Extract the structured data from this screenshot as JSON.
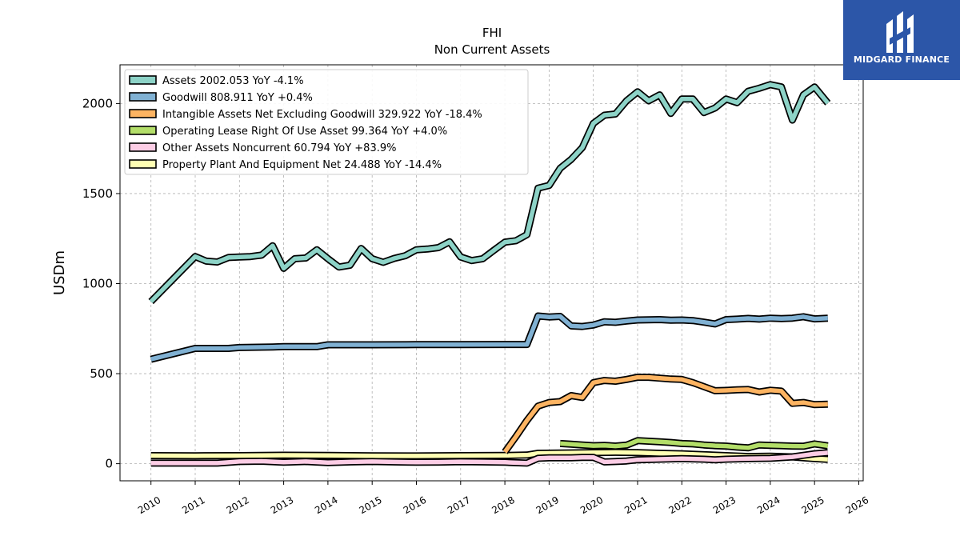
{
  "brand": {
    "name": "MIDGARD FINANCE",
    "color": "#2c56a8"
  },
  "chart_data": {
    "type": "line",
    "title": "FHI",
    "subtitle": "Non Current  Assets",
    "xlabel": "",
    "ylabel": "USDm",
    "xlim": [
      2009.3,
      2026.1
    ],
    "ylim": [
      -95,
      2215
    ],
    "xticks": [
      "2010",
      "2011",
      "2012",
      "2013",
      "2014",
      "2015",
      "2016",
      "2017",
      "2018",
      "2019",
      "2020",
      "2021",
      "2022",
      "2023",
      "2024",
      "2025",
      "2026"
    ],
    "yticks": [
      0,
      500,
      1000,
      1500,
      2000
    ],
    "grid": true,
    "legend_position": "top-left",
    "series": [
      {
        "name": "Assets",
        "legend": "Assets  2002.053 YoY -4.1%",
        "color": "#8dd3c7",
        "points": [
          [
            2010.0,
            900
          ],
          [
            2011.0,
            1150
          ],
          [
            2011.25,
            1125
          ],
          [
            2011.5,
            1120
          ],
          [
            2011.75,
            1145
          ],
          [
            2012.0,
            1148
          ],
          [
            2012.25,
            1150
          ],
          [
            2012.5,
            1158
          ],
          [
            2012.75,
            1210
          ],
          [
            2013.0,
            1085
          ],
          [
            2013.25,
            1138
          ],
          [
            2013.5,
            1142
          ],
          [
            2013.75,
            1188
          ],
          [
            2014.0,
            1138
          ],
          [
            2014.25,
            1092
          ],
          [
            2014.5,
            1102
          ],
          [
            2014.75,
            1195
          ],
          [
            2015.0,
            1138
          ],
          [
            2015.25,
            1118
          ],
          [
            2015.5,
            1140
          ],
          [
            2015.75,
            1155
          ],
          [
            2016.0,
            1188
          ],
          [
            2016.25,
            1192
          ],
          [
            2016.5,
            1200
          ],
          [
            2016.75,
            1232
          ],
          [
            2017.0,
            1148
          ],
          [
            2017.25,
            1128
          ],
          [
            2017.5,
            1138
          ],
          [
            2017.75,
            1185
          ],
          [
            2018.0,
            1230
          ],
          [
            2018.25,
            1238
          ],
          [
            2018.5,
            1272
          ],
          [
            2018.75,
            1530
          ],
          [
            2019.0,
            1545
          ],
          [
            2019.25,
            1640
          ],
          [
            2019.5,
            1690
          ],
          [
            2019.75,
            1755
          ],
          [
            2020.0,
            1890
          ],
          [
            2020.25,
            1935
          ],
          [
            2020.5,
            1942
          ],
          [
            2020.75,
            2015
          ],
          [
            2021.0,
            2065
          ],
          [
            2021.25,
            2015
          ],
          [
            2021.5,
            2048
          ],
          [
            2021.75,
            1945
          ],
          [
            2022.0,
            2025
          ],
          [
            2022.25,
            2025
          ],
          [
            2022.5,
            1950
          ],
          [
            2022.75,
            1975
          ],
          [
            2023.0,
            2025
          ],
          [
            2023.25,
            2005
          ],
          [
            2023.5,
            2068
          ],
          [
            2023.75,
            2085
          ],
          [
            2024.0,
            2105
          ],
          [
            2024.25,
            2092
          ],
          [
            2024.5,
            1908
          ],
          [
            2024.75,
            2048
          ],
          [
            2025.0,
            2092
          ],
          [
            2025.3,
            2002
          ]
        ]
      },
      {
        "name": "Goodwill",
        "legend": "Goodwill  808.911 YoY +0.4%",
        "color": "#80b1d3",
        "points": [
          [
            2010.0,
            580
          ],
          [
            2011.0,
            640
          ],
          [
            2011.75,
            640
          ],
          [
            2012.0,
            645
          ],
          [
            2012.75,
            648
          ],
          [
            2013.0,
            650
          ],
          [
            2013.75,
            650
          ],
          [
            2014.0,
            660
          ],
          [
            2015.0,
            660
          ],
          [
            2016.0,
            661
          ],
          [
            2017.0,
            661
          ],
          [
            2018.0,
            662
          ],
          [
            2018.5,
            662
          ],
          [
            2018.75,
            820
          ],
          [
            2019.0,
            815
          ],
          [
            2019.25,
            818
          ],
          [
            2019.5,
            765
          ],
          [
            2019.75,
            762
          ],
          [
            2020.0,
            770
          ],
          [
            2020.25,
            788
          ],
          [
            2020.5,
            785
          ],
          [
            2020.75,
            792
          ],
          [
            2021.0,
            798
          ],
          [
            2021.5,
            800
          ],
          [
            2021.75,
            797
          ],
          [
            2022.0,
            798
          ],
          [
            2022.25,
            795
          ],
          [
            2022.5,
            786
          ],
          [
            2022.75,
            776
          ],
          [
            2023.0,
            800
          ],
          [
            2023.25,
            803
          ],
          [
            2023.5,
            807
          ],
          [
            2023.75,
            803
          ],
          [
            2024.0,
            808
          ],
          [
            2024.25,
            806
          ],
          [
            2024.5,
            808
          ],
          [
            2024.75,
            816
          ],
          [
            2025.0,
            804
          ],
          [
            2025.3,
            808
          ]
        ]
      },
      {
        "name": "Intangible Assets Net Excluding Goodwill",
        "legend": "Intangible Assets Net Excluding Goodwill  329.922 YoY -18.4%",
        "color": "#fdb462",
        "points": [
          [
            2018.0,
            65
          ],
          [
            2018.25,
            150
          ],
          [
            2018.5,
            240
          ],
          [
            2018.75,
            320
          ],
          [
            2019.0,
            340
          ],
          [
            2019.25,
            345
          ],
          [
            2019.5,
            378
          ],
          [
            2019.75,
            368
          ],
          [
            2020.0,
            450
          ],
          [
            2020.25,
            462
          ],
          [
            2020.5,
            458
          ],
          [
            2020.75,
            468
          ],
          [
            2021.0,
            480
          ],
          [
            2021.25,
            480
          ],
          [
            2021.5,
            475
          ],
          [
            2021.75,
            470
          ],
          [
            2022.0,
            468
          ],
          [
            2022.25,
            450
          ],
          [
            2022.5,
            428
          ],
          [
            2022.75,
            405
          ],
          [
            2023.0,
            407
          ],
          [
            2023.25,
            410
          ],
          [
            2023.5,
            412
          ],
          [
            2023.75,
            398
          ],
          [
            2024.0,
            408
          ],
          [
            2024.25,
            403
          ],
          [
            2024.5,
            335
          ],
          [
            2024.75,
            340
          ],
          [
            2025.0,
            328
          ],
          [
            2025.3,
            330
          ]
        ]
      },
      {
        "name": "Operating Lease Right Of Use Asset",
        "legend": "Operating Lease Right Of Use Asset  99.364 YoY +4.0%",
        "color": "#b3de69",
        "points": [
          [
            2019.25,
            112
          ],
          [
            2019.5,
            108
          ],
          [
            2019.75,
            104
          ],
          [
            2020.0,
            100
          ],
          [
            2020.25,
            102
          ],
          [
            2020.5,
            98
          ],
          [
            2020.75,
            103
          ],
          [
            2021.0,
            128
          ],
          [
            2021.25,
            125
          ],
          [
            2021.5,
            122
          ],
          [
            2021.75,
            118
          ],
          [
            2022.0,
            112
          ],
          [
            2022.25,
            110
          ],
          [
            2022.5,
            104
          ],
          [
            2022.75,
            100
          ],
          [
            2023.0,
            98
          ],
          [
            2023.25,
            92
          ],
          [
            2023.5,
            88
          ],
          [
            2023.75,
            104
          ],
          [
            2024.0,
            102
          ],
          [
            2024.25,
            100
          ],
          [
            2024.5,
            98
          ],
          [
            2024.75,
            97
          ],
          [
            2025.0,
            110
          ],
          [
            2025.3,
            99
          ]
        ]
      },
      {
        "name": "Other Assets Noncurrent",
        "legend": "Other Assets Noncurrent  60.794 YoY +83.9%",
        "color": "#fccde5",
        "points": [
          [
            2010.0,
            3
          ],
          [
            2011.0,
            3
          ],
          [
            2011.5,
            3
          ],
          [
            2012.0,
            12
          ],
          [
            2012.5,
            14
          ],
          [
            2013.0,
            8
          ],
          [
            2013.5,
            12
          ],
          [
            2014.0,
            6
          ],
          [
            2014.5,
            10
          ],
          [
            2015.0,
            12
          ],
          [
            2015.5,
            10
          ],
          [
            2016.0,
            8
          ],
          [
            2016.5,
            9
          ],
          [
            2017.0,
            11
          ],
          [
            2017.5,
            10
          ],
          [
            2018.0,
            8
          ],
          [
            2018.5,
            3
          ],
          [
            2018.75,
            30
          ],
          [
            2019.0,
            33
          ],
          [
            2019.5,
            33
          ],
          [
            2019.75,
            35
          ],
          [
            2020.0,
            35
          ],
          [
            2020.25,
            10
          ],
          [
            2020.5,
            12
          ],
          [
            2020.75,
            15
          ],
          [
            2021.0,
            22
          ],
          [
            2021.5,
            25
          ],
          [
            2022.0,
            28
          ],
          [
            2022.5,
            25
          ],
          [
            2022.75,
            22
          ],
          [
            2023.0,
            25
          ],
          [
            2023.5,
            28
          ],
          [
            2024.0,
            30
          ],
          [
            2024.5,
            38
          ],
          [
            2025.0,
            55
          ],
          [
            2025.3,
            61
          ]
        ]
      },
      {
        "name": "Property Plant And Equipment Net",
        "legend": "Property Plant And Equipment Net  24.488 YoY -14.4%",
        "color": "#ffffb3",
        "points": [
          [
            2010.0,
            45
          ],
          [
            2011.0,
            44
          ],
          [
            2012.0,
            45
          ],
          [
            2013.0,
            47
          ],
          [
            2014.0,
            46
          ],
          [
            2015.0,
            44
          ],
          [
            2016.0,
            43
          ],
          [
            2017.0,
            45
          ],
          [
            2018.0,
            46
          ],
          [
            2018.5,
            48
          ],
          [
            2018.75,
            58
          ],
          [
            2019.5,
            60
          ],
          [
            2020.0,
            62
          ],
          [
            2020.5,
            63
          ],
          [
            2021.0,
            62
          ],
          [
            2021.5,
            58
          ],
          [
            2022.0,
            55
          ],
          [
            2022.5,
            50
          ],
          [
            2023.0,
            45
          ],
          [
            2023.5,
            40
          ],
          [
            2024.0,
            42
          ],
          [
            2024.5,
            38
          ],
          [
            2025.0,
            28
          ],
          [
            2025.3,
            24
          ]
        ]
      }
    ]
  }
}
